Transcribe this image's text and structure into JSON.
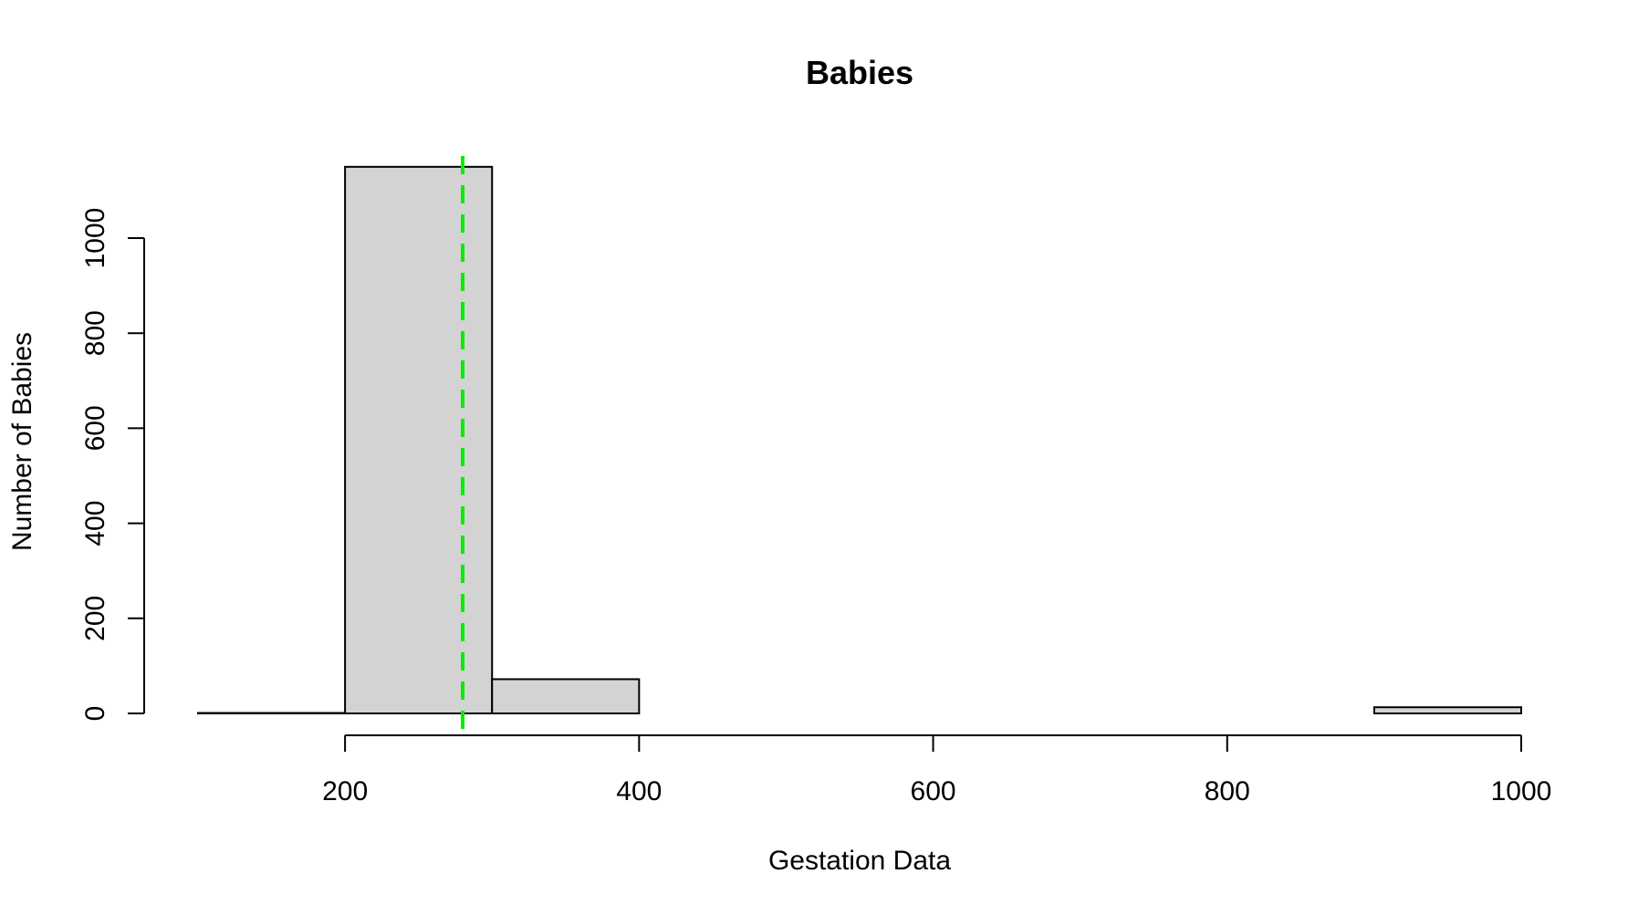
{
  "chart_data": {
    "type": "bar",
    "title": "Babies",
    "xlabel": "Gestation Data",
    "ylabel": "Number of Babies",
    "bins": [
      {
        "start": 100,
        "end": 200,
        "count": 1
      },
      {
        "start": 200,
        "end": 300,
        "count": 1150
      },
      {
        "start": 300,
        "end": 400,
        "count": 72
      },
      {
        "start": 400,
        "end": 500,
        "count": 0
      },
      {
        "start": 500,
        "end": 600,
        "count": 0
      },
      {
        "start": 600,
        "end": 700,
        "count": 0
      },
      {
        "start": 700,
        "end": 800,
        "count": 0
      },
      {
        "start": 800,
        "end": 900,
        "count": 0
      },
      {
        "start": 900,
        "end": 1000,
        "count": 13
      }
    ],
    "x_ticks": [
      "200",
      "400",
      "600",
      "800",
      "1000"
    ],
    "y_ticks": [
      "0",
      "200",
      "400",
      "600",
      "800",
      "1000"
    ],
    "xlim": [
      100,
      1000
    ],
    "ylim": [
      0,
      1150
    ],
    "reference_line": {
      "x": 280,
      "color": "#00ee00",
      "style": "dashed"
    },
    "bar_fill": "#d3d3d3",
    "bar_stroke": "#000000",
    "grid": false
  }
}
